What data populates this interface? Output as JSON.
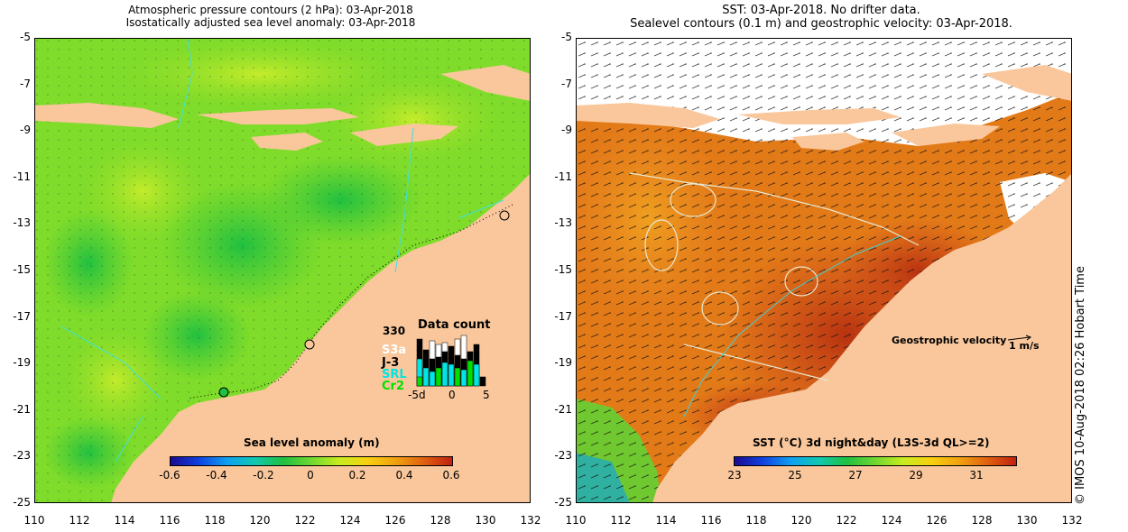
{
  "left_panel": {
    "title_line1": "Atmospheric pressure contours (2 hPa): 03-Apr-2018",
    "title_line2": "Isostatically adjusted sea level anomaly: 03-Apr-2018",
    "colorbar": {
      "title": "Sea level anomaly (m)",
      "ticks": [
        "-0.6",
        "-0.4",
        "-0.2",
        "0",
        "0.2",
        "0.4",
        "0.6"
      ]
    },
    "data_count": {
      "title": "Data count",
      "max": "330",
      "missions": [
        {
          "label": "S3a",
          "color": "#ffffff"
        },
        {
          "label": "J-3",
          "color": "#000000"
        },
        {
          "label": "SRL",
          "color": "#00e5e5"
        },
        {
          "label": "Cr2",
          "color": "#00e000"
        }
      ],
      "x_ticks": [
        "-5d",
        "0",
        "5"
      ]
    }
  },
  "right_panel": {
    "title_line1": "SST: 03-Apr-2018. No drifter data.",
    "title_line2": "Sealevel contours (0.1 m) and geostrophic velocity: 03-Apr-2018.",
    "colorbar": {
      "title": "SST (°C) 3d night&day (L3S-3d QL>=2)",
      "ticks": [
        "23",
        "25",
        "27",
        "29",
        "31"
      ]
    },
    "velocity_legend": {
      "label": "Geostrophic velocity",
      "scale": "1 m/s"
    }
  },
  "axes": {
    "y_ticks": [
      "-5",
      "-7",
      "-9",
      "-11",
      "-13",
      "-15",
      "-17",
      "-19",
      "-21",
      "-23",
      "-25"
    ],
    "x_ticks": [
      "110",
      "112",
      "114",
      "116",
      "118",
      "120",
      "122",
      "124",
      "126",
      "128",
      "130",
      "132"
    ]
  },
  "copyright": "© IMOS 10-Aug-2018 02:26 Hobart Time",
  "colors": {
    "land": "#f9c79b",
    "sla_ocean": "#7fdc2a",
    "sst_ocean": "#e37a18",
    "sst_warm": "#c2410e",
    "cloud": "#ffffff"
  }
}
